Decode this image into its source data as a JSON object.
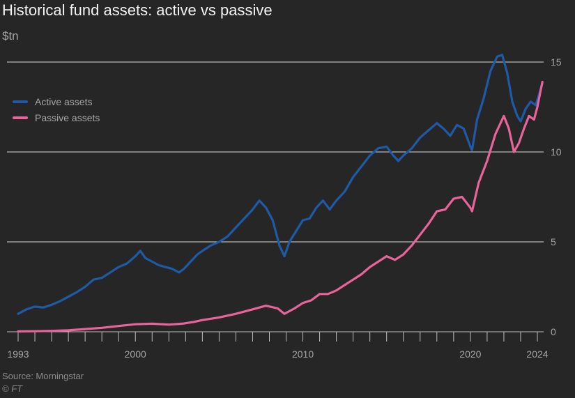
{
  "header": {
    "title": "Historical fund assets: active vs passive",
    "unit": "$tn"
  },
  "footer": {
    "source": "Source: Morningstar",
    "credit": "© FT"
  },
  "colors": {
    "background": "#262626",
    "active": "#1f5aa6",
    "passive": "#e8649a",
    "grid": "#d9d9d9",
    "axis": "#bfbfbf"
  },
  "chart_data": {
    "type": "line",
    "title": "Historical fund assets: active vs passive",
    "ylabel": "$tn",
    "xlim": [
      1993,
      2024.5
    ],
    "ylim": [
      0,
      15
    ],
    "y_ticks": [
      0,
      5,
      10,
      15
    ],
    "x_tick_labels": [
      "1993",
      "2000",
      "2010",
      "2020",
      "2024"
    ],
    "grid": "horizontal",
    "legend_position": "top-left",
    "series": [
      {
        "name": "Active assets",
        "color": "#1f5aa6",
        "x": [
          1993,
          1993.5,
          1994,
          1994.5,
          1995,
          1995.5,
          1996,
          1996.5,
          1997,
          1997.5,
          1998,
          1998.5,
          1999,
          1999.5,
          2000,
          2000.3,
          2000.6,
          2001,
          2001.4,
          2001.8,
          2002.2,
          2002.6,
          2002.9,
          2003.3,
          2003.7,
          2004,
          2004.5,
          2005,
          2005.5,
          2006,
          2006.5,
          2007,
          2007.4,
          2007.8,
          2008.2,
          2008.6,
          2008.9,
          2009.2,
          2009.6,
          2010,
          2010.4,
          2010.8,
          2011.2,
          2011.6,
          2012,
          2012.5,
          2013,
          2013.5,
          2014,
          2014.5,
          2015,
          2015.4,
          2015.7,
          2016,
          2016.5,
          2017,
          2017.5,
          2018,
          2018.4,
          2018.8,
          2019.2,
          2019.6,
          2020,
          2020.1,
          2020.4,
          2020.8,
          2021.2,
          2021.6,
          2021.9,
          2022.2,
          2022.5,
          2022.8,
          2023,
          2023.3,
          2023.6,
          2023.9,
          2024.1,
          2024.3
        ],
        "values": [
          1.0,
          1.25,
          1.4,
          1.35,
          1.5,
          1.7,
          1.95,
          2.2,
          2.5,
          2.9,
          3.0,
          3.3,
          3.6,
          3.8,
          4.2,
          4.5,
          4.1,
          3.9,
          3.7,
          3.6,
          3.5,
          3.3,
          3.5,
          3.9,
          4.3,
          4.5,
          4.8,
          5.0,
          5.3,
          5.8,
          6.3,
          6.8,
          7.3,
          6.9,
          6.2,
          4.8,
          4.2,
          5.0,
          5.6,
          6.2,
          6.3,
          6.9,
          7.3,
          6.8,
          7.3,
          7.8,
          8.6,
          9.2,
          9.8,
          10.2,
          10.3,
          9.8,
          9.5,
          9.8,
          10.2,
          10.8,
          11.2,
          11.6,
          11.3,
          10.9,
          11.5,
          11.3,
          10.3,
          10.1,
          11.8,
          13.0,
          14.5,
          15.3,
          15.4,
          14.4,
          12.8,
          12.0,
          11.7,
          12.4,
          12.8,
          12.6,
          13.2,
          13.8
        ]
      },
      {
        "name": "Passive assets",
        "color": "#e8649a",
        "x": [
          1993,
          1994,
          1995,
          1996,
          1997,
          1998,
          1999,
          2000,
          2001,
          2002,
          2002.8,
          2003.5,
          2004,
          2005,
          2006,
          2007,
          2007.8,
          2008.5,
          2008.9,
          2009.5,
          2010,
          2010.5,
          2011,
          2011.5,
          2012,
          2012.5,
          2013,
          2013.5,
          2014,
          2014.5,
          2015,
          2015.5,
          2016,
          2016.5,
          2017,
          2017.5,
          2018,
          2018.5,
          2019,
          2019.5,
          2020,
          2020.1,
          2020.5,
          2021,
          2021.5,
          2022,
          2022.3,
          2022.6,
          2022.9,
          2023.2,
          2023.5,
          2023.8,
          2024,
          2024.3
        ],
        "values": [
          0.02,
          0.03,
          0.05,
          0.08,
          0.15,
          0.22,
          0.32,
          0.42,
          0.45,
          0.4,
          0.45,
          0.55,
          0.65,
          0.8,
          1.0,
          1.25,
          1.45,
          1.3,
          1.0,
          1.3,
          1.6,
          1.75,
          2.1,
          2.1,
          2.3,
          2.6,
          2.9,
          3.2,
          3.6,
          3.9,
          4.2,
          4.0,
          4.3,
          4.8,
          5.4,
          6.0,
          6.7,
          6.8,
          7.4,
          7.5,
          6.9,
          6.7,
          8.3,
          9.5,
          11.0,
          12.0,
          11.3,
          10.0,
          10.5,
          11.3,
          12.0,
          11.8,
          12.5,
          13.9
        ]
      }
    ]
  }
}
